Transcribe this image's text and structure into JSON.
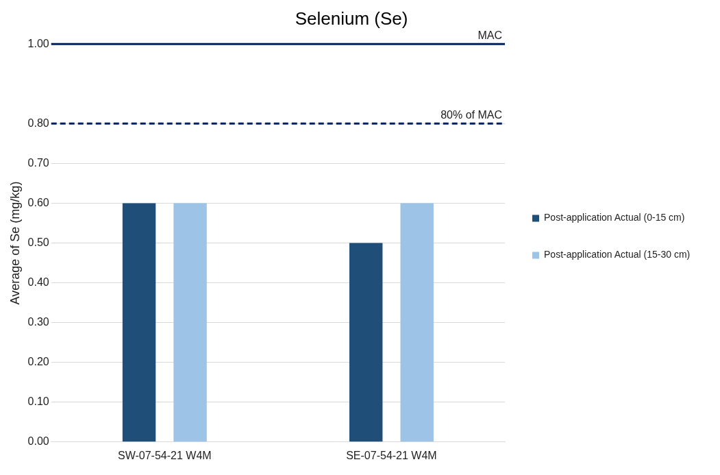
{
  "chart_data": {
    "type": "bar",
    "title": "Selenium (Se)",
    "ylabel": "Average of Se (mg/kg)",
    "categories": [
      "SW-07-54-21 W4M",
      "SE-07-54-21 W4M"
    ],
    "series": [
      {
        "name": "Post-application Actual (0-15 cm)",
        "color": "#1f4e79",
        "values": [
          0.6,
          0.5
        ]
      },
      {
        "name": "Post-application Actual (15-30 cm)",
        "color": "#9dc3e6",
        "values": [
          0.6,
          0.6
        ]
      }
    ],
    "ylim": [
      0,
      1
    ],
    "yticks": [
      {
        "value": 0,
        "label": "0.00"
      },
      {
        "value": 0.1,
        "label": "0.10"
      },
      {
        "value": 0.2,
        "label": "0.20"
      },
      {
        "value": 0.3,
        "label": "0.30"
      },
      {
        "value": 0.4,
        "label": "0.40"
      },
      {
        "value": 0.5,
        "label": "0.50"
      },
      {
        "value": 0.6,
        "label": "0.60"
      },
      {
        "value": 0.7,
        "label": "0.70"
      },
      {
        "value": 0.8,
        "label": "0.80"
      },
      {
        "value": 1,
        "label": "1.00"
      }
    ],
    "ref_lines": [
      {
        "axis": "y",
        "value": 1,
        "label": "MAC",
        "color": "#002060",
        "line_style": "solid"
      },
      {
        "axis": "y",
        "value": 0.8,
        "label": "80% of MAC",
        "color": "#002060",
        "line_style": "dashed"
      }
    ],
    "grid": "y",
    "legend": "right"
  }
}
